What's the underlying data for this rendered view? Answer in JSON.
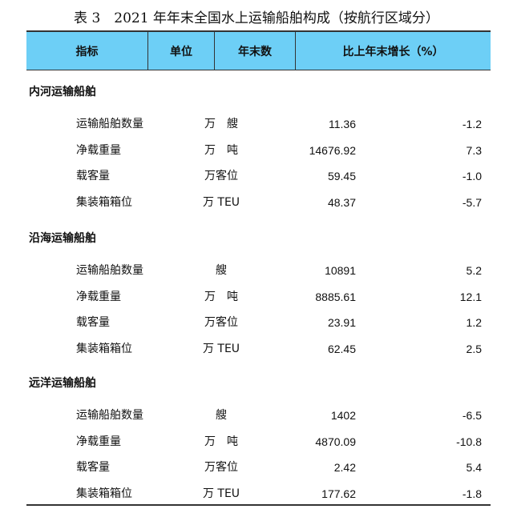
{
  "title": "表 3　2021 年年末全国水上运输船舶构成（按航行区域分）",
  "header": {
    "colors": {
      "header_bg": "#6dcff6"
    },
    "columns": [
      "指标",
      "单位",
      "年末数",
      "比上年末增长（%）"
    ]
  },
  "sections": [
    {
      "name": "内河运输船舶",
      "rows": [
        {
          "indicator": "运输船舶数量",
          "unit": "万　艘",
          "value": "11.36",
          "growth": "-1.2"
        },
        {
          "indicator": "净载重量",
          "unit": "万　吨",
          "value": "14676.92",
          "growth": "7.3"
        },
        {
          "indicator": "载客量",
          "unit": "万客位",
          "value": "59.45",
          "growth": "-1.0"
        },
        {
          "indicator": "集装箱箱位",
          "unit": "万 TEU",
          "value": "48.37",
          "growth": "-5.7"
        }
      ]
    },
    {
      "name": "沿海运输船舶",
      "rows": [
        {
          "indicator": "运输船舶数量",
          "unit": "艘",
          "value": "10891",
          "growth": "5.2"
        },
        {
          "indicator": "净载重量",
          "unit": "万　吨",
          "value": "8885.61",
          "growth": "12.1"
        },
        {
          "indicator": "载客量",
          "unit": "万客位",
          "value": "23.91",
          "growth": "1.2"
        },
        {
          "indicator": "集装箱箱位",
          "unit": "万 TEU",
          "value": "62.45",
          "growth": "2.5"
        }
      ]
    },
    {
      "name": "远洋运输船舶",
      "rows": [
        {
          "indicator": "运输船舶数量",
          "unit": "艘",
          "value": "1402",
          "growth": "-6.5"
        },
        {
          "indicator": "净载重量",
          "unit": "万　吨",
          "value": "4870.09",
          "growth": "-10.8"
        },
        {
          "indicator": "载客量",
          "unit": "万客位",
          "value": "2.42",
          "growth": "5.4"
        },
        {
          "indicator": "集装箱箱位",
          "unit": "万 TEU",
          "value": "177.62",
          "growth": "-1.8"
        }
      ]
    }
  ]
}
